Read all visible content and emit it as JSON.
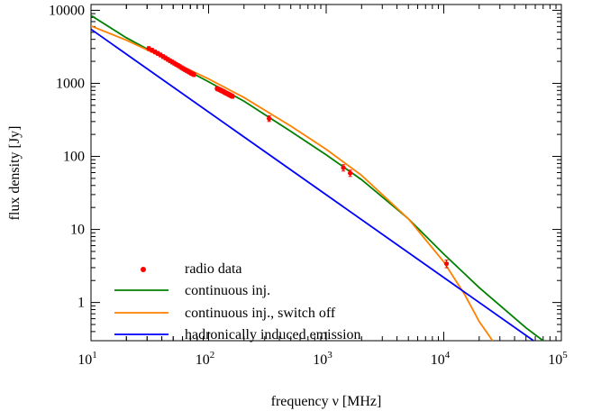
{
  "chart_data": {
    "type": "line",
    "xscale": "log",
    "yscale": "log",
    "xlim": [
      10,
      100000
    ],
    "ylim": [
      0.3,
      12000
    ],
    "xlabel": "frequency ν [MHz]",
    "ylabel": "flux density [Jy]",
    "x_ticks": [
      {
        "value": 10,
        "mant": "10",
        "exp": "1"
      },
      {
        "value": 100,
        "mant": "10",
        "exp": "2"
      },
      {
        "value": 1000,
        "mant": "10",
        "exp": "3"
      },
      {
        "value": 10000,
        "mant": "10",
        "exp": "4"
      },
      {
        "value": 100000,
        "mant": "10",
        "exp": "5"
      }
    ],
    "y_ticks": [
      {
        "value": 1,
        "label": "1"
      },
      {
        "value": 10,
        "label": "10"
      },
      {
        "value": 100,
        "label": "100"
      },
      {
        "value": 1000,
        "label": "1000"
      },
      {
        "value": 10000,
        "label": "10000"
      }
    ],
    "grid": false,
    "legend_position": "bottom-left",
    "legend": [
      {
        "name": "radio data",
        "kind": "marker",
        "color": "#ff0000"
      },
      {
        "name": "continuous inj.",
        "kind": "line",
        "color": "#008000"
      },
      {
        "name": "continuous inj., switch off",
        "kind": "line",
        "color": "#ff8000"
      },
      {
        "name": "hadronically induced emission",
        "kind": "line",
        "color": "#0000ff"
      }
    ],
    "series": [
      {
        "name": "radio data",
        "type": "scatter",
        "color": "#ff0000",
        "points": [
          {
            "x": 31,
            "y": 3000,
            "err": 0.06
          },
          {
            "x": 33,
            "y": 2850,
            "err": 0.06
          },
          {
            "x": 35,
            "y": 2700,
            "err": 0.06
          },
          {
            "x": 37,
            "y": 2570,
            "err": 0.06
          },
          {
            "x": 39,
            "y": 2450,
            "err": 0.06
          },
          {
            "x": 41,
            "y": 2330,
            "err": 0.06
          },
          {
            "x": 43,
            "y": 2230,
            "err": 0.06
          },
          {
            "x": 45,
            "y": 2130,
            "err": 0.06
          },
          {
            "x": 47,
            "y": 2040,
            "err": 0.06
          },
          {
            "x": 49,
            "y": 1960,
            "err": 0.06
          },
          {
            "x": 51,
            "y": 1890,
            "err": 0.06
          },
          {
            "x": 53,
            "y": 1820,
            "err": 0.06
          },
          {
            "x": 55,
            "y": 1760,
            "err": 0.06
          },
          {
            "x": 57,
            "y": 1700,
            "err": 0.06
          },
          {
            "x": 59,
            "y": 1640,
            "err": 0.06
          },
          {
            "x": 61,
            "y": 1590,
            "err": 0.06
          },
          {
            "x": 63,
            "y": 1540,
            "err": 0.06
          },
          {
            "x": 65,
            "y": 1500,
            "err": 0.06
          },
          {
            "x": 67,
            "y": 1460,
            "err": 0.06
          },
          {
            "x": 69,
            "y": 1420,
            "err": 0.06
          },
          {
            "x": 71,
            "y": 1380,
            "err": 0.06
          },
          {
            "x": 73,
            "y": 1350,
            "err": 0.06
          },
          {
            "x": 75,
            "y": 1320,
            "err": 0.06
          },
          {
            "x": 118,
            "y": 850,
            "err": 0.06
          },
          {
            "x": 121,
            "y": 835,
            "err": 0.06
          },
          {
            "x": 124,
            "y": 820,
            "err": 0.06
          },
          {
            "x": 127,
            "y": 805,
            "err": 0.06
          },
          {
            "x": 130,
            "y": 790,
            "err": 0.06
          },
          {
            "x": 133,
            "y": 775,
            "err": 0.06
          },
          {
            "x": 136,
            "y": 760,
            "err": 0.06
          },
          {
            "x": 139,
            "y": 745,
            "err": 0.06
          },
          {
            "x": 142,
            "y": 733,
            "err": 0.06
          },
          {
            "x": 145,
            "y": 720,
            "err": 0.06
          },
          {
            "x": 148,
            "y": 708,
            "err": 0.06
          },
          {
            "x": 151,
            "y": 696,
            "err": 0.06
          },
          {
            "x": 154,
            "y": 685,
            "err": 0.06
          },
          {
            "x": 157,
            "y": 674,
            "err": 0.06
          },
          {
            "x": 160,
            "y": 664,
            "err": 0.06
          },
          {
            "x": 327,
            "y": 330,
            "err": 0.09
          },
          {
            "x": 1400,
            "y": 70,
            "err": 0.1
          },
          {
            "x": 1600,
            "y": 59,
            "err": 0.1
          },
          {
            "x": 10550,
            "y": 3.4,
            "err": 0.12
          }
        ]
      },
      {
        "name": "continuous inj.",
        "type": "line",
        "color": "#008000",
        "x": [
          10,
          20,
          50,
          100,
          200,
          500,
          1000,
          2000,
          5000,
          10000,
          20000,
          50000,
          70000
        ],
        "y": [
          8500,
          4200,
          1900,
          1050,
          570,
          220,
          105,
          48,
          14,
          4.6,
          1.6,
          0.45,
          0.3
        ]
      },
      {
        "name": "continuous inj., switch off",
        "type": "line",
        "color": "#ff8000",
        "x": [
          10,
          20,
          50,
          100,
          200,
          500,
          1000,
          2000,
          5000,
          10000,
          15000,
          20000,
          26000
        ],
        "y": [
          6100,
          3900,
          1950,
          1150,
          640,
          260,
          125,
          55,
          14,
          3.6,
          1.3,
          0.55,
          0.3
        ]
      },
      {
        "name": "hadronically induced emission",
        "type": "line",
        "color": "#0000ff",
        "x": [
          10,
          58000
        ],
        "y": [
          5500,
          0.3
        ]
      }
    ]
  }
}
